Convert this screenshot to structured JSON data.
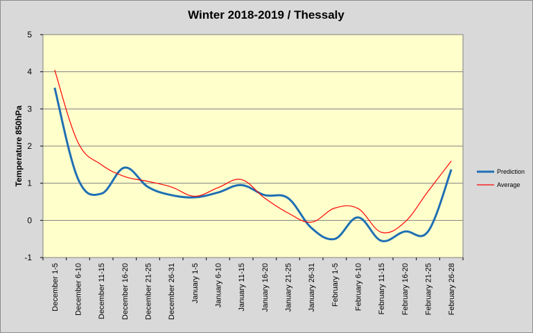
{
  "chart_data": {
    "type": "line",
    "title": "Winter 2018-2019 / Thessaly",
    "xlabel": "",
    "ylabel": "Temperature 850hPa",
    "ylim": [
      -1,
      5
    ],
    "yticks": [
      -1,
      0,
      1,
      2,
      3,
      4,
      5
    ],
    "grid": true,
    "legend_position": "right",
    "categories": [
      "December 1-5",
      "December 6-10",
      "December 11-15",
      "December 16-20",
      "December 21-25",
      "December 26-31",
      "January 1-5",
      "January 6-10",
      "January 11-15",
      "January 16-20",
      "January 21-25",
      "January 26-31",
      "February 1-5",
      "February 6-10",
      "February 11-15",
      "February 16-20",
      "February 21-25",
      "February 26-28"
    ],
    "series": [
      {
        "name": "Prediction",
        "color": "#1f6fb4",
        "values": [
          3.57,
          1.12,
          0.72,
          1.42,
          0.9,
          0.68,
          0.62,
          0.75,
          0.95,
          0.68,
          0.6,
          -0.2,
          -0.5,
          0.08,
          -0.55,
          -0.3,
          -0.3,
          1.37
        ]
      },
      {
        "name": "Average",
        "color": "#ff0000",
        "values": [
          4.05,
          2.1,
          1.5,
          1.18,
          1.05,
          0.9,
          0.65,
          0.88,
          1.1,
          0.6,
          0.2,
          -0.05,
          0.33,
          0.32,
          -0.32,
          -0.05,
          0.78,
          1.6
        ]
      }
    ],
    "colors": {
      "background": "#d9d9d9",
      "plot_area": "#ffffcc",
      "grid": "#808080"
    }
  }
}
